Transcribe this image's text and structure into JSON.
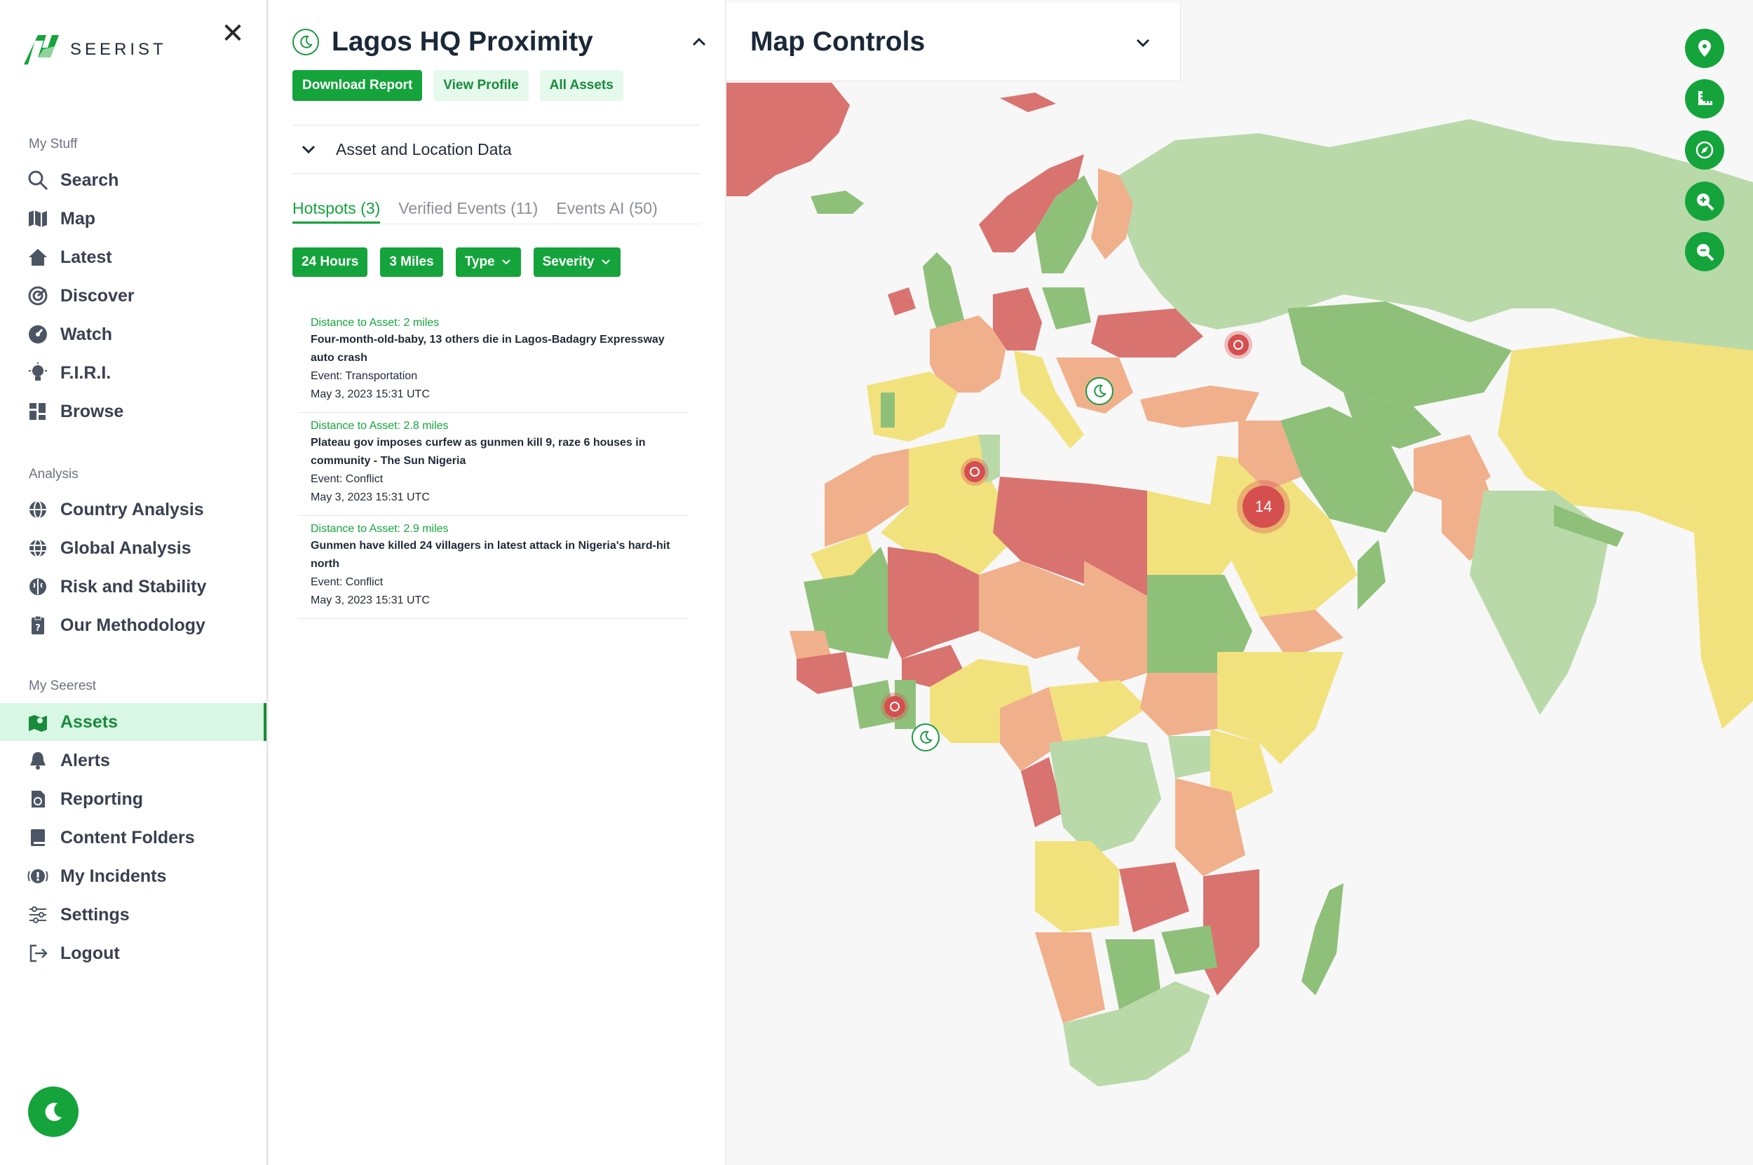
{
  "sidebar": {
    "brand": "SEERIST",
    "sections": {
      "my_stuff": "My Stuff",
      "analysis": "Analysis",
      "my_seerest": "My Seerest"
    },
    "items": {
      "search": "Search",
      "map": "Map",
      "latest": "Latest",
      "discover": "Discover",
      "watch": "Watch",
      "firi": "F.I.R.I.",
      "browse": "Browse",
      "country_analysis": "Country Analysis",
      "global_analysis": "Global Analysis",
      "risk_stability": "Risk and Stability",
      "methodology": "Our Methodology",
      "assets": "Assets",
      "alerts": "Alerts",
      "reporting": "Reporting",
      "content_folders": "Content Folders",
      "my_incidents": "My Incidents",
      "settings": "Settings",
      "logout": "Logout"
    },
    "active_item": "Assets"
  },
  "panel": {
    "title": "Lagos HQ Proximity",
    "buttons": {
      "download": "Download Report",
      "profile": "View Profile",
      "all_assets": "All Assets"
    },
    "section": "Asset and Location Data",
    "tabs": {
      "hotspots": "Hotspots (3)",
      "verified": "Verified Events (11)",
      "ai": "Events AI (50)"
    },
    "filters": {
      "hours": "24 Hours",
      "miles": "3 Miles",
      "type": "Type",
      "severity": "Severity"
    },
    "events": [
      {
        "distance": "Distance to Asset: 2 miles",
        "headline": "Four-month-old-baby, 13 others die in Lagos-Badagry Expressway auto crash",
        "event": "Event: Transportation",
        "time": "May 3, 2023 15:31 UTC"
      },
      {
        "distance": "Distance to Asset: 2.8 miles",
        "headline": "Plateau gov imposes curfew as gunmen kill 9, raze 6 houses in community - The Sun Nigeria",
        "event": "Event: Conflict",
        "time": "May 3, 2023 15:31 UTC"
      },
      {
        "distance": "Distance to Asset: 2.9 miles",
        "headline": "Gunmen have killed 24 villagers in latest attack in Nigeria's hard-hit north",
        "event": "Event: Conflict",
        "time": "May 3, 2023 15:31 UTC"
      }
    ]
  },
  "map": {
    "controls_title": "Map Controls",
    "cluster_count": "14",
    "tools": [
      "pin-icon",
      "ruler-icon",
      "compass-icon",
      "zoom-in-icon",
      "zoom-out-icon"
    ],
    "risk_colors": {
      "low": "#b9d9a9",
      "low_mid": "#8fc07a",
      "mid": "#f2e27e",
      "mid_high": "#f1b08c",
      "high": "#d9736f"
    },
    "accent": "#14a43b"
  }
}
